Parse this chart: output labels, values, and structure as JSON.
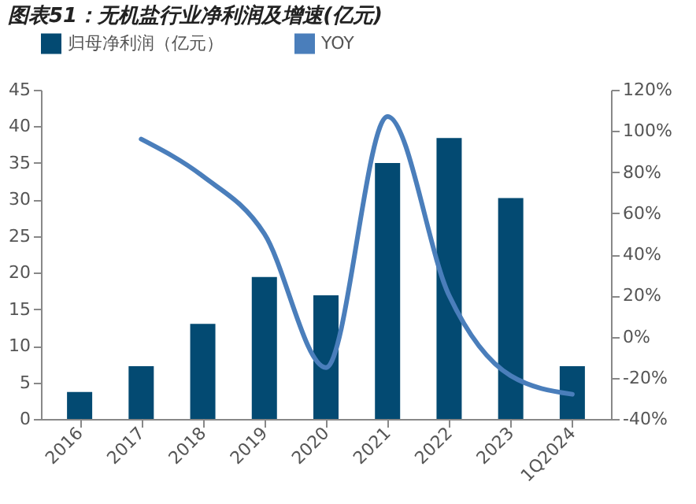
{
  "chart_data": {
    "type": "bar",
    "title": "图表51：无机盐行业净利润及增速(亿元)",
    "categories": [
      "2016",
      "2017",
      "2018",
      "2019",
      "2020",
      "2021",
      "2022",
      "2023",
      "1Q2024"
    ],
    "series": [
      {
        "name": "归母净利润（亿元）",
        "color": "#034a72",
        "values": [
          3.7,
          7.2,
          13,
          19.4,
          16.9,
          35,
          38.4,
          30.2,
          7.2
        ]
      },
      {
        "name": "YOY",
        "type": "line",
        "axis": "y2",
        "color": "#4a7ebb",
        "values": [
          null,
          96,
          78,
          50,
          -15,
          107,
          20,
          -19,
          -28
        ]
      }
    ],
    "ylim": [
      0,
      45
    ],
    "yticks": [
      0,
      5,
      10,
      15,
      20,
      25,
      30,
      35,
      40,
      45
    ],
    "y2lim": [
      -40,
      120
    ],
    "y2ticks": [
      {
        "value": -40,
        "label": "-40%"
      },
      {
        "value": -20,
        "label": "-20%"
      },
      {
        "value": 0,
        "label": "0%"
      },
      {
        "value": 20,
        "label": "20%"
      },
      {
        "value": 40,
        "label": "40%"
      },
      {
        "value": 60,
        "label": "60%"
      },
      {
        "value": 80,
        "label": "80%"
      },
      {
        "value": 100,
        "label": "100%"
      },
      {
        "value": 120,
        "label": "120%"
      }
    ],
    "legend": "top",
    "grid": false,
    "marker": "none",
    "line_style": "solid"
  }
}
